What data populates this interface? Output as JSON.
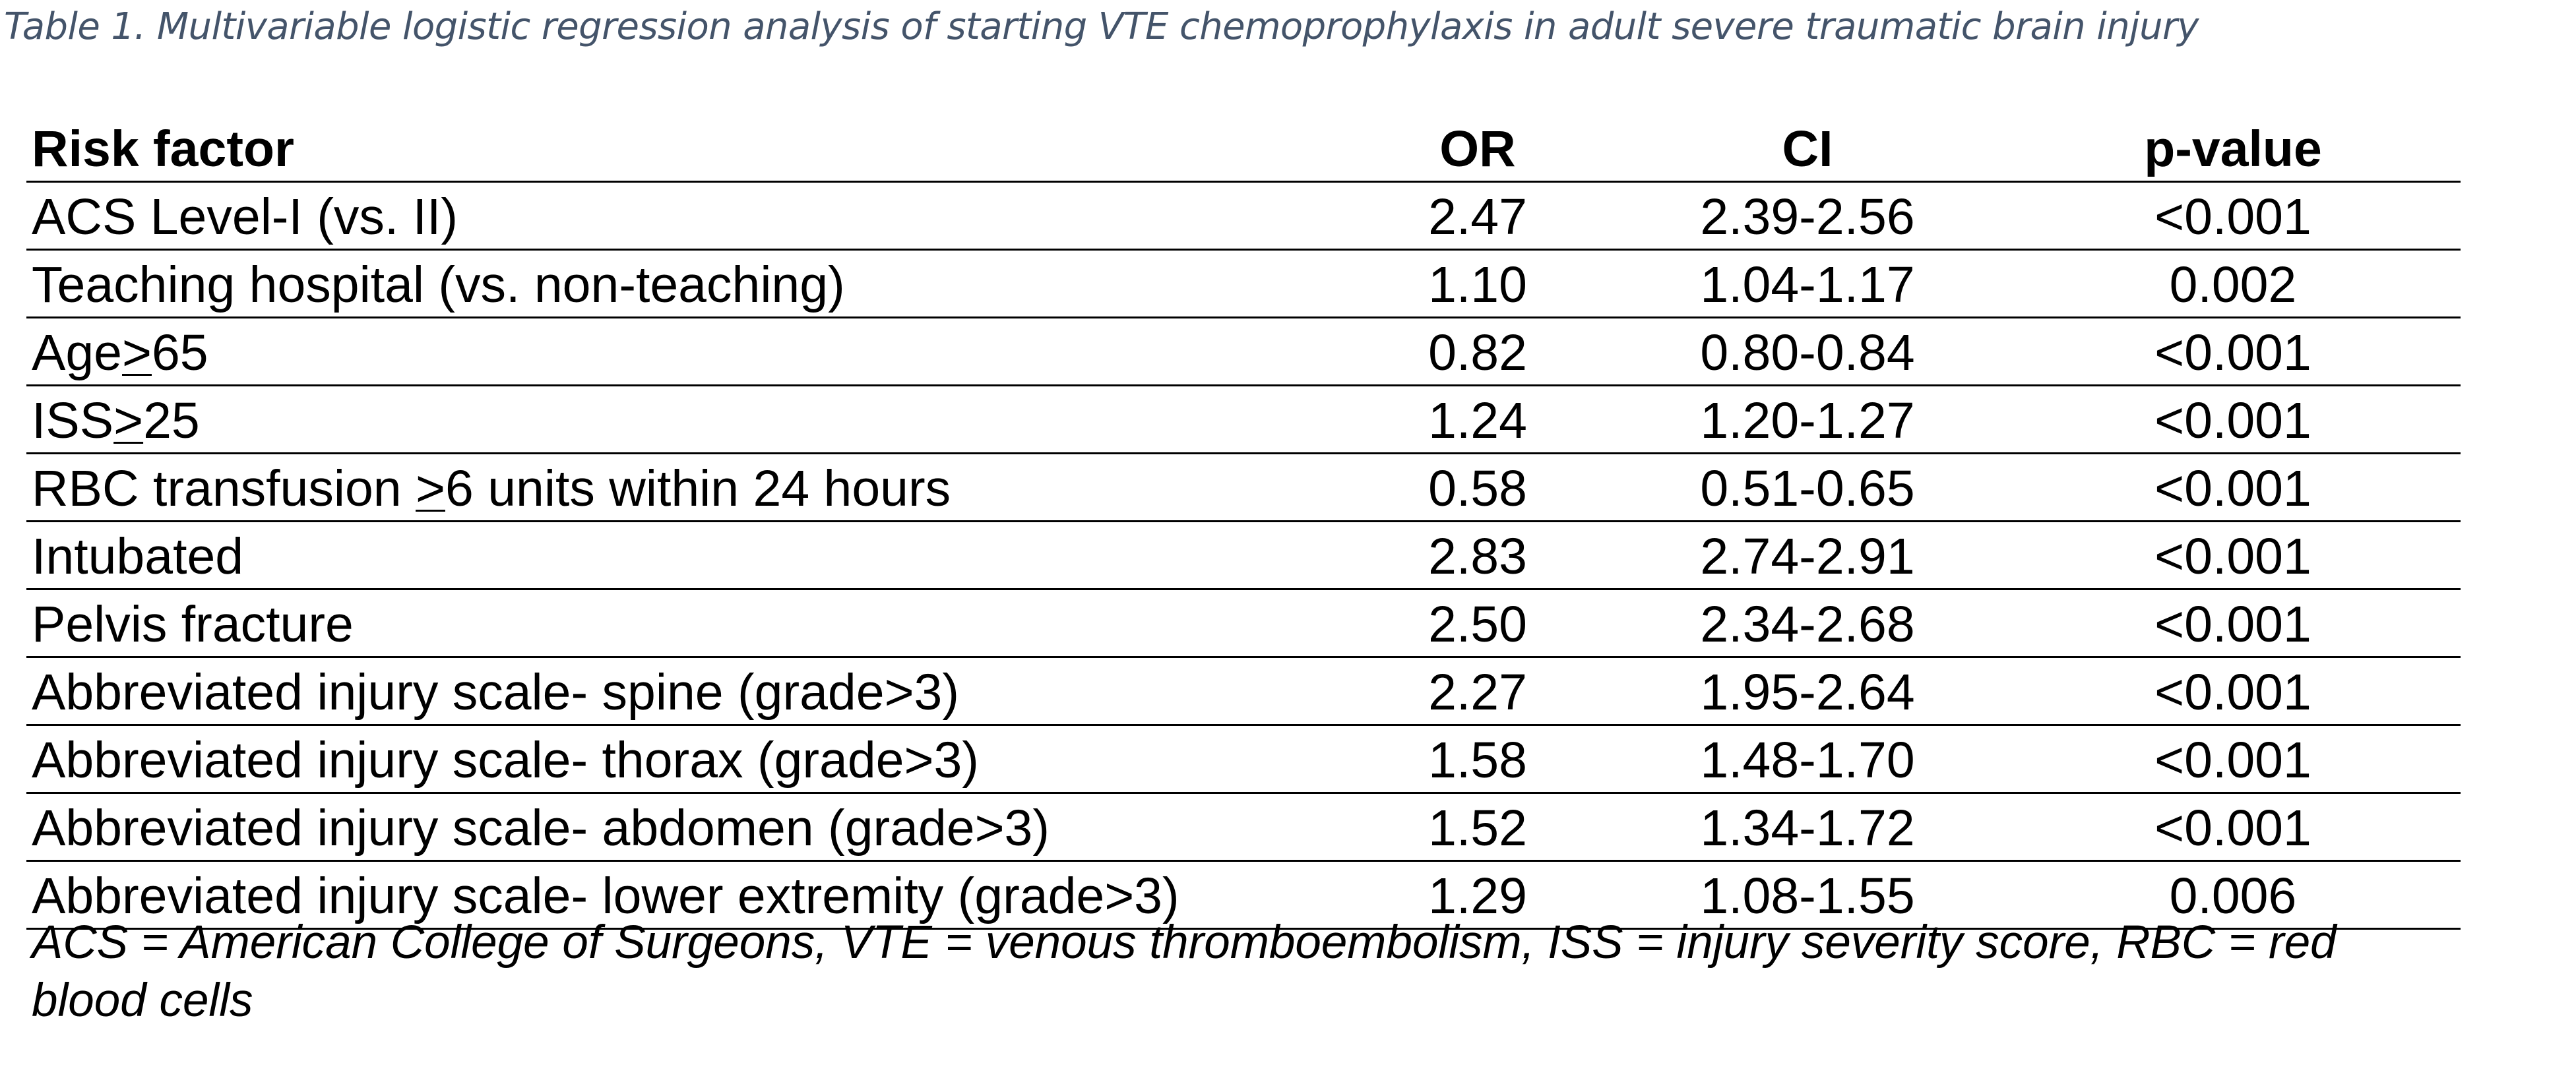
{
  "caption": "Table 1. Multivariable logistic regression analysis of starting VTE chemoprophylaxis in adult severe traumatic brain injury",
  "table": {
    "headers": {
      "factor": "Risk factor",
      "or": "OR",
      "ci": "CI",
      "p": "p-value"
    },
    "rows": [
      {
        "pre": "ACS Level-I (vs. II)",
        "u": "",
        "post": "",
        "or": "2.47",
        "ci": "2.39-2.56",
        "p": "<0.001"
      },
      {
        "pre": "Teaching hospital (vs. non-teaching)",
        "u": "",
        "post": "",
        "or": "1.10",
        "ci": "1.04-1.17",
        "p": "0.002"
      },
      {
        "pre": "Age",
        "u": ">",
        "post": "65",
        "or": "0.82",
        "ci": "0.80-0.84",
        "p": "<0.001"
      },
      {
        "pre": "ISS",
        "u": ">",
        "post": "25",
        "or": "1.24",
        "ci": "1.20-1.27",
        "p": "<0.001"
      },
      {
        "pre": "RBC transfusion ",
        "u": ">",
        "post": "6 units within 24 hours",
        "or": "0.58",
        "ci": "0.51-0.65",
        "p": "<0.001"
      },
      {
        "pre": "Intubated",
        "u": "",
        "post": "",
        "or": "2.83",
        "ci": "2.74-2.91",
        "p": "<0.001"
      },
      {
        "pre": "Pelvis fracture",
        "u": "",
        "post": "",
        "or": "2.50",
        "ci": "2.34-2.68",
        "p": "<0.001"
      },
      {
        "pre": "Abbreviated injury scale- spine (grade>3)",
        "u": "",
        "post": "",
        "or": "2.27",
        "ci": "1.95-2.64",
        "p": "<0.001"
      },
      {
        "pre": "Abbreviated injury scale- thorax (grade>3)",
        "u": "",
        "post": "",
        "or": "1.58",
        "ci": "1.48-1.70",
        "p": "<0.001"
      },
      {
        "pre": "Abbreviated injury scale- abdomen (grade>3)",
        "u": "",
        "post": "",
        "or": "1.52",
        "ci": "1.34-1.72",
        "p": "<0.001"
      },
      {
        "pre": "Abbreviated injury scale- lower extremity (grade>3)",
        "u": "",
        "post": "",
        "or": "1.29",
        "ci": "1.08-1.55",
        "p": "0.006"
      }
    ]
  },
  "footnote": "ACS = American College of Surgeons, VTE = venous thromboembolism, ISS = injury severity score, RBC = red blood cells",
  "colors": {
    "caption": "#44546a",
    "text": "#000000",
    "rule": "#000000"
  }
}
